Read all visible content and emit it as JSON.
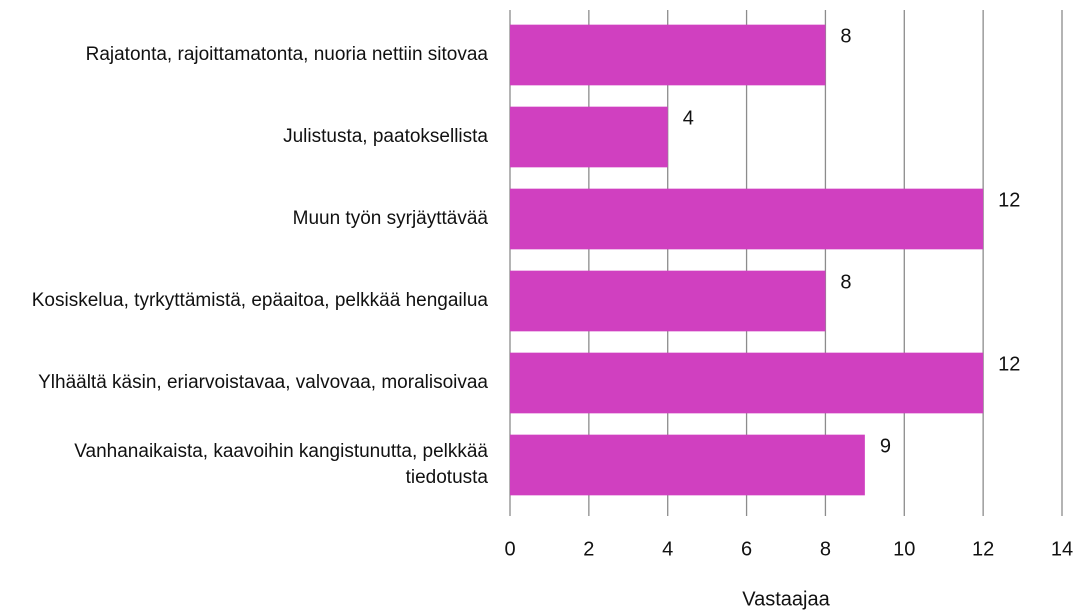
{
  "chart_data": {
    "type": "bar",
    "orientation": "horizontal",
    "categories": [
      "Rajatonta, rajoittamatonta, nuoria nettiin sitovaa",
      "Julistusta, paatoksellista",
      "Muun työn syrjäyttävää",
      "Kosiskelua, tyrkyttämistä, epäaitoa, pelkkää hengailua",
      "Ylhäältä käsin, eriarvoistavaa, valvovaa, moralisoivaa",
      "Vanhanaikaista, kaavoihin kangistunutta, pelkkää tiedotusta"
    ],
    "values": [
      8,
      4,
      12,
      8,
      12,
      9
    ],
    "color": "#d040c0",
    "xlabel": "Vastaajaa",
    "xlim": [
      0,
      14
    ],
    "xticks": [
      0,
      2,
      4,
      6,
      8,
      10,
      12,
      14
    ],
    "grid": true
  }
}
